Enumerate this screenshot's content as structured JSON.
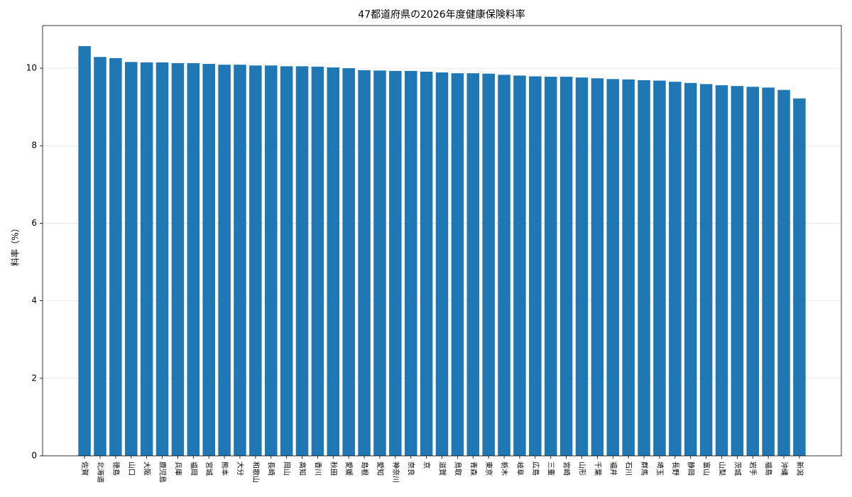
{
  "chart_data": {
    "type": "bar",
    "title": "47都道府県の2026年度健康保険料率",
    "y_label": "料率（%）",
    "categories": [
      "佐賀",
      "北海道",
      "徳島",
      "山口",
      "大阪",
      "鹿児島",
      "兵庫",
      "福岡",
      "宮城",
      "熊本",
      "大分",
      "和歌山",
      "長崎",
      "岡山",
      "高知",
      "香川",
      "秋田",
      "愛媛",
      "島根",
      "愛知",
      "神奈川",
      "奈良",
      "京",
      "滋賀",
      "鳥取",
      "青森",
      "東京",
      "栃木",
      "岐阜",
      "広島",
      "三重",
      "宮崎",
      "山形",
      "千葉",
      "福井",
      "石川",
      "群馬",
      "埼玉",
      "長野",
      "静岡",
      "富山",
      "山梨",
      "茨城",
      "岩手",
      "福島",
      "沖縄",
      "新潟"
    ],
    "values": [
      10.57,
      10.29,
      10.26,
      10.16,
      10.15,
      10.15,
      10.13,
      10.13,
      10.11,
      10.09,
      10.09,
      10.07,
      10.07,
      10.05,
      10.05,
      10.04,
      10.02,
      10.0,
      9.95,
      9.94,
      9.93,
      9.93,
      9.91,
      9.89,
      9.87,
      9.87,
      9.86,
      9.83,
      9.81,
      9.79,
      9.78,
      9.78,
      9.76,
      9.74,
      9.72,
      9.71,
      9.69,
      9.68,
      9.65,
      9.62,
      9.59,
      9.56,
      9.54,
      9.52,
      9.5,
      9.44,
      9.22
    ],
    "color": "#1f77b4",
    "ylim": [
      0,
      11.1
    ],
    "yticks": [
      0,
      2,
      4,
      6,
      8,
      10
    ],
    "grid": true
  }
}
